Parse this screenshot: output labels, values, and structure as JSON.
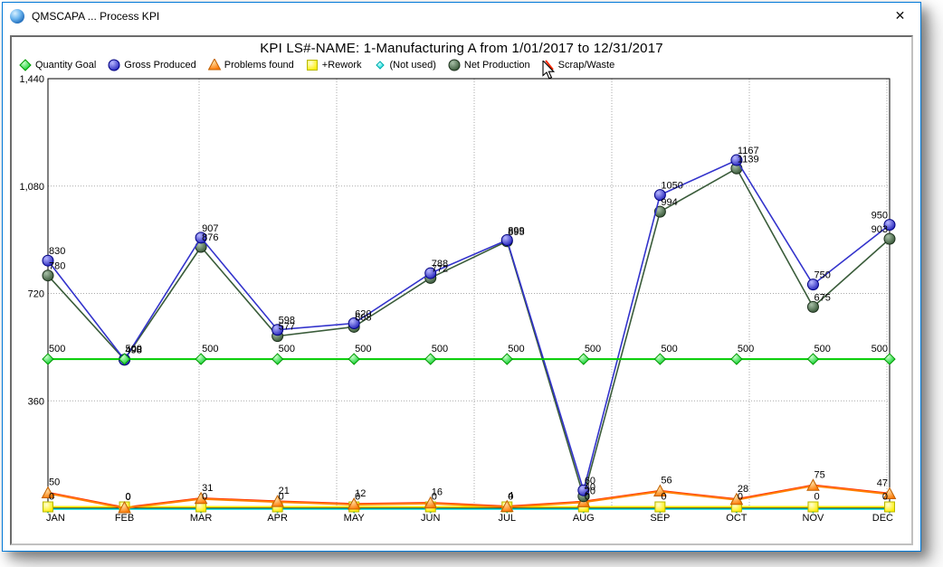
{
  "window": {
    "title": "QMSCAPA ... Process KPI",
    "close_icon": "✕"
  },
  "chart": {
    "title": "KPI LS#-NAME: 1-Manufacturing A from  1/01/2017 to 12/31/2017"
  },
  "colors": {
    "window_border": "#0078d7",
    "axis": "#000000",
    "grid": "#aaaaaa"
  },
  "chart_data": {
    "type": "line",
    "title": "KPI LS#-NAME: 1-Manufacturing A from  1/01/2017 to 12/31/2017",
    "categories": [
      "JAN",
      "FEB",
      "MAR",
      "APR",
      "MAY",
      "JUN",
      "JUL",
      "AUG",
      "SEP",
      "OCT",
      "NOV",
      "DEC"
    ],
    "ylim": [
      0,
      1440
    ],
    "yticks": [
      {
        "value": 1440,
        "label": "1,440"
      },
      {
        "value": 1080,
        "label": "1,080"
      },
      {
        "value": 720,
        "label": "720"
      },
      {
        "value": 360,
        "label": "360"
      }
    ],
    "grid": "dotted",
    "legend_position": "top",
    "series": [
      {
        "id": "goal",
        "name": "Quantity Goal",
        "color": "#00cc00",
        "marker": "diamond",
        "show_labels": true,
        "values": [
          500,
          500,
          500,
          500,
          500,
          500,
          500,
          500,
          500,
          500,
          500,
          500
        ]
      },
      {
        "id": "gross",
        "name": "Gross Produced",
        "color": "#3333cc",
        "marker": "circle",
        "show_labels": true,
        "values": [
          830,
          498,
          907,
          598,
          620,
          788,
          899,
          60,
          1050,
          1167,
          750,
          950
        ]
      },
      {
        "id": "problems",
        "name": "Problems found",
        "color": "#ff8000",
        "marker": "triangle",
        "show_labels": true,
        "values": [
          50,
          0,
          31,
          21,
          12,
          16,
          4,
          20,
          56,
          28,
          75,
          47
        ]
      },
      {
        "id": "rework",
        "name": "+Rework",
        "color": "#ffee00",
        "marker": "square",
        "show_labels": true,
        "values": [
          0,
          0,
          0,
          0,
          0,
          0,
          0,
          0,
          0,
          0,
          0,
          0
        ]
      },
      {
        "id": "notused",
        "name": "(Not used)",
        "color": "#00dddd",
        "marker": "diamond-small",
        "show_labels": false,
        "values": [
          0,
          0,
          0,
          0,
          0,
          0,
          0,
          0,
          0,
          0,
          0,
          0
        ]
      },
      {
        "id": "net",
        "name": "Net Production",
        "color": "#3a5c3a",
        "marker": "circle",
        "show_labels": true,
        "values": [
          780,
          498,
          876,
          577,
          608,
          772,
          895,
          40,
          994,
          1139,
          675,
          903
        ]
      },
      {
        "id": "scrap",
        "name": "Scrap/Waste",
        "color": "#ff2a00",
        "marker": "none",
        "show_labels": false,
        "values": [
          50,
          0,
          31,
          21,
          12,
          16,
          4,
          20,
          56,
          28,
          75,
          47
        ]
      }
    ]
  }
}
